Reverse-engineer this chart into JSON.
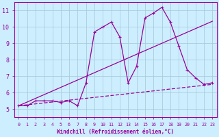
{
  "xlabel": "Windchill (Refroidissement éolien,°C)",
  "ylabel": "",
  "bg_color": "#cceeff",
  "line_color": "#990099",
  "grid_color": "#aaccdd",
  "xlim": [
    -0.5,
    23.5
  ],
  "ylim": [
    4.5,
    11.5
  ],
  "xticks": [
    0,
    1,
    2,
    3,
    4,
    5,
    6,
    7,
    8,
    9,
    10,
    11,
    12,
    13,
    14,
    15,
    16,
    17,
    18,
    19,
    20,
    21,
    22,
    23
  ],
  "yticks": [
    5,
    6,
    7,
    8,
    9,
    10,
    11
  ],
  "line1_x": [
    0,
    1,
    2,
    3,
    4,
    5,
    6,
    7,
    8,
    9,
    10,
    11,
    12,
    13,
    14,
    15,
    16,
    17,
    18,
    19,
    20,
    21,
    22,
    23
  ],
  "line1_y": [
    5.2,
    5.2,
    5.5,
    5.5,
    5.5,
    5.4,
    5.5,
    5.2,
    6.6,
    9.7,
    10.0,
    10.3,
    9.4,
    6.6,
    7.6,
    10.55,
    10.85,
    11.2,
    10.3,
    8.85,
    7.4,
    6.9,
    6.5,
    6.6
  ],
  "line2_x": [
    0,
    23
  ],
  "line2_y": [
    5.2,
    10.35
  ],
  "line3_x": [
    0,
    23
  ],
  "line3_y": [
    5.2,
    6.5
  ],
  "marker": "+"
}
